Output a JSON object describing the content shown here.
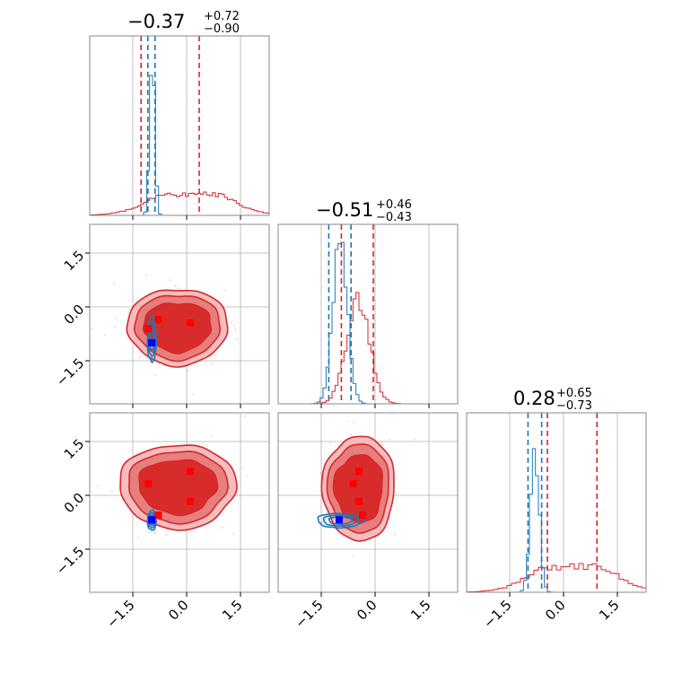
{
  "chart_data": {
    "type": "corner",
    "parameters": 3,
    "colors": {
      "posterior_wide": "#d62728",
      "posterior_narrow": "#1f77b4",
      "truth_marker": "#0000ff",
      "sample_marker": "#ff0000",
      "grid": "#b0b0b0"
    },
    "axis_range": [
      -2.7,
      2.3
    ],
    "tick_labels": [
      "−1.5",
      "0.0",
      "1.5"
    ],
    "tick_values": [
      -1.5,
      0.0,
      1.5
    ],
    "titles": [
      {
        "center": "−0.37",
        "plus": "+0.72",
        "minus": "−0.90",
        "median": -0.37
      },
      {
        "center": "−0.51",
        "plus": "+0.46",
        "minus": "−0.43",
        "median": -0.51
      },
      {
        "center": "0.28",
        "plus": "+0.65",
        "minus": "−0.73",
        "median": 0.28
      }
    ],
    "quantiles": {
      "red": [
        [
          -1.27,
          0.35
        ],
        [
          -0.94,
          -0.05
        ],
        [
          -0.45,
          0.93
        ]
      ],
      "blue": [
        [
          -1.08,
          -0.88
        ],
        [
          -1.29,
          -0.67
        ],
        [
          -0.99,
          -0.61
        ]
      ]
    },
    "samples_red": [
      {
        "x": -1.07,
        "y": -0.61,
        "z": 0.32
      },
      {
        "x": -0.79,
        "y": -0.35,
        "z": -0.55
      },
      {
        "x": 0.1,
        "y": -0.45,
        "z": 0.67
      },
      {
        "x": 0.1,
        "y": -0.45,
        "z": -0.17
      }
    ],
    "truth_blue": {
      "x": -0.97,
      "y": -1.0,
      "z": -0.68
    }
  }
}
